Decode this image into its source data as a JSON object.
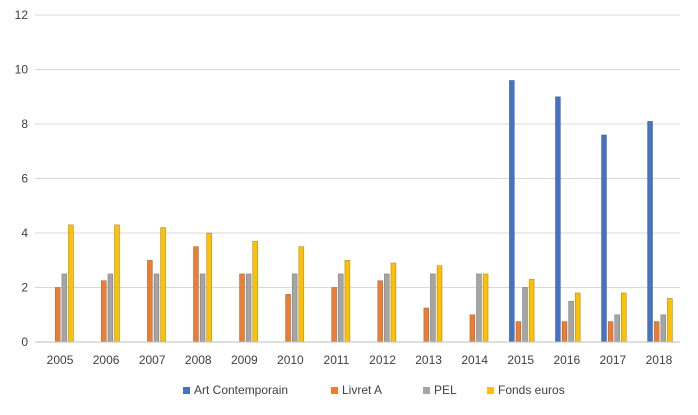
{
  "chart_data": {
    "type": "bar",
    "categories": [
      "2005",
      "2006",
      "2007",
      "2008",
      "2009",
      "2010",
      "2011",
      "2012",
      "2013",
      "2014",
      "2015",
      "2016",
      "2017",
      "2018"
    ],
    "series": [
      {
        "name": "Art Contemporain",
        "color": "#4472C4",
        "values": [
          0,
          0,
          0,
          0,
          0,
          0,
          0,
          0,
          0,
          0,
          9.6,
          9.0,
          7.6,
          8.1
        ]
      },
      {
        "name": "Livret A",
        "color": "#ED7D31",
        "values": [
          2.0,
          2.25,
          3.0,
          3.5,
          2.5,
          1.75,
          2.0,
          2.25,
          1.25,
          1.0,
          0.75,
          0.75,
          0.75,
          0.75
        ]
      },
      {
        "name": "PEL",
        "color": "#A5A5A5",
        "values": [
          2.5,
          2.5,
          2.5,
          2.5,
          2.5,
          2.5,
          2.5,
          2.5,
          2.5,
          2.5,
          2.0,
          1.5,
          1.0,
          1.0
        ]
      },
      {
        "name": "Fonds euros",
        "color": "#FFC000",
        "values": [
          4.3,
          4.3,
          4.2,
          4.0,
          3.7,
          3.5,
          3.0,
          2.9,
          2.8,
          2.5,
          2.3,
          1.8,
          1.8,
          1.6
        ]
      }
    ],
    "ylim": [
      0,
      12
    ],
    "yticks": [
      "0",
      "2",
      "4",
      "6",
      "8",
      "10",
      "12"
    ],
    "grid": true,
    "legend_position": "bottom"
  }
}
